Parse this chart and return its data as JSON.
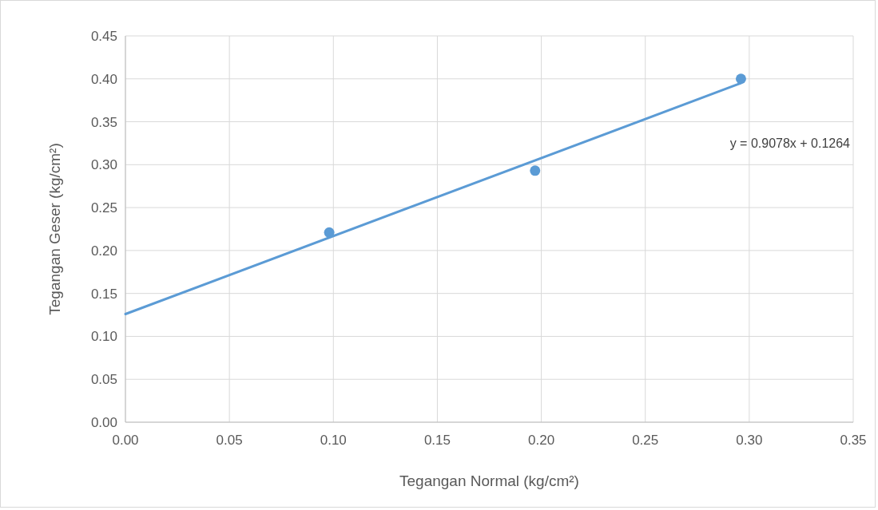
{
  "chart_data": {
    "type": "scatter",
    "xlabel": "Tegangan Normal (kg/cm²)",
    "ylabel": "Tegangan Geser (kg/cm²)",
    "xlim": [
      0,
      0.35
    ],
    "ylim": [
      0,
      0.45
    ],
    "xticks": [
      {
        "value": 0,
        "label": "0.00"
      },
      {
        "value": 0.05,
        "label": "0.05"
      },
      {
        "value": 0.1,
        "label": "0.10"
      },
      {
        "value": 0.15,
        "label": "0.15"
      },
      {
        "value": 0.2,
        "label": "0.20"
      },
      {
        "value": 0.25,
        "label": "0.25"
      },
      {
        "value": 0.3,
        "label": "0.30"
      },
      {
        "value": 0.35,
        "label": "0.35"
      }
    ],
    "yticks": [
      {
        "value": 0,
        "label": "0.00"
      },
      {
        "value": 0.05,
        "label": "0.05"
      },
      {
        "value": 0.1,
        "label": "0.10"
      },
      {
        "value": 0.15,
        "label": "0.15"
      },
      {
        "value": 0.2,
        "label": "0.20"
      },
      {
        "value": 0.25,
        "label": "0.25"
      },
      {
        "value": 0.3,
        "label": "0.30"
      },
      {
        "value": 0.35,
        "label": "0.35"
      },
      {
        "value": 0.4,
        "label": "0.40"
      },
      {
        "value": 0.45,
        "label": "0.45"
      }
    ],
    "grid": true,
    "series": [
      {
        "color": "#5b9bd5",
        "marker": "circle",
        "x": [
          0.098,
          0.197,
          0.296
        ],
        "values": [
          0.221,
          0.293,
          0.4
        ]
      },
      {
        "type": "line",
        "color": "#5b9bd5",
        "marker": "none",
        "x": [
          0,
          0.296
        ],
        "values": [
          0.126,
          0.395
        ]
      }
    ],
    "annotations": [
      "y = 0.9078x + 0.1264"
    ]
  }
}
